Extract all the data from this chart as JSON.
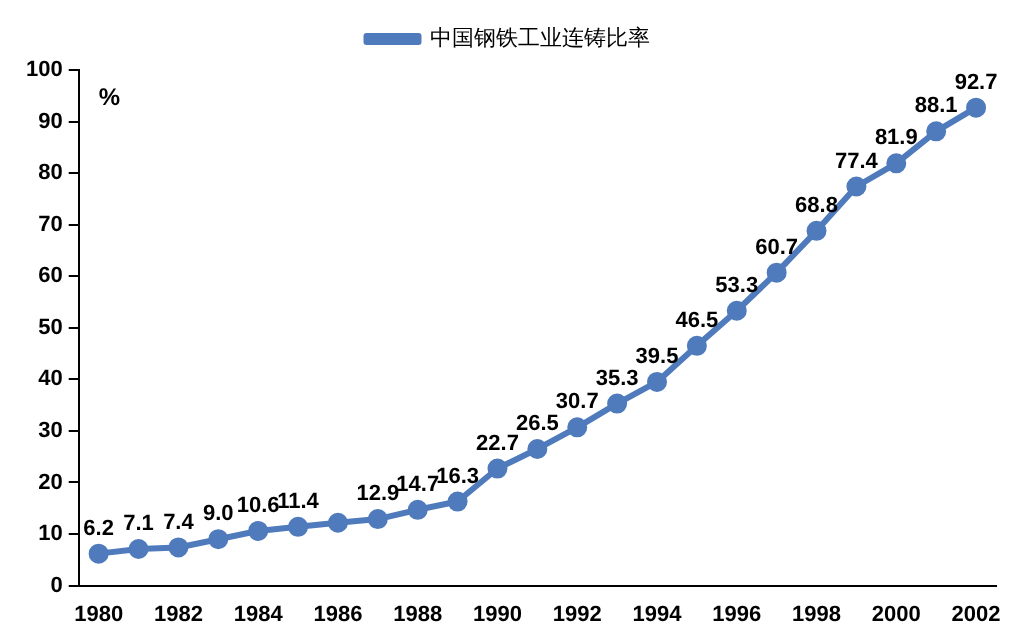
{
  "chart_data": {
    "type": "line",
    "categories": [
      "1980",
      null,
      "1982",
      null,
      "1984",
      null,
      "1986",
      null,
      "1988",
      null,
      "1990",
      null,
      "1992",
      null,
      "1994",
      null,
      "1996",
      null,
      "1998",
      null,
      "2000",
      null,
      "2002"
    ],
    "series": [
      {
        "name": "中国钢铁工业连铸比率",
        "color": "#4f7bbd",
        "values": [
          6.2,
          7.1,
          7.4,
          9.0,
          10.6,
          11.4,
          12.2,
          12.9,
          14.7,
          16.3,
          22.7,
          26.5,
          30.7,
          35.3,
          39.5,
          46.5,
          53.3,
          60.7,
          68.8,
          77.4,
          81.9,
          88.1,
          92.7
        ],
        "value_labels": [
          "6.2",
          "7.1",
          "7.4",
          "9.0",
          "10.6",
          "11.4",
          null,
          "12.9",
          "14.7",
          "16.3",
          "22.7",
          "26.5",
          "30.7",
          "35.3",
          "39.5",
          "46.5",
          "53.3",
          "60.7",
          "68.8",
          "77.4",
          "81.9",
          "88.1",
          "92.7"
        ]
      }
    ],
    "ylim": [
      0,
      100
    ],
    "yticks": [
      0,
      10,
      20,
      30,
      40,
      50,
      60,
      70,
      80,
      90,
      100
    ],
    "annotations": [
      "%"
    ],
    "grid": false,
    "legend": "top",
    "marker": "circle",
    "line_style": "solid"
  }
}
